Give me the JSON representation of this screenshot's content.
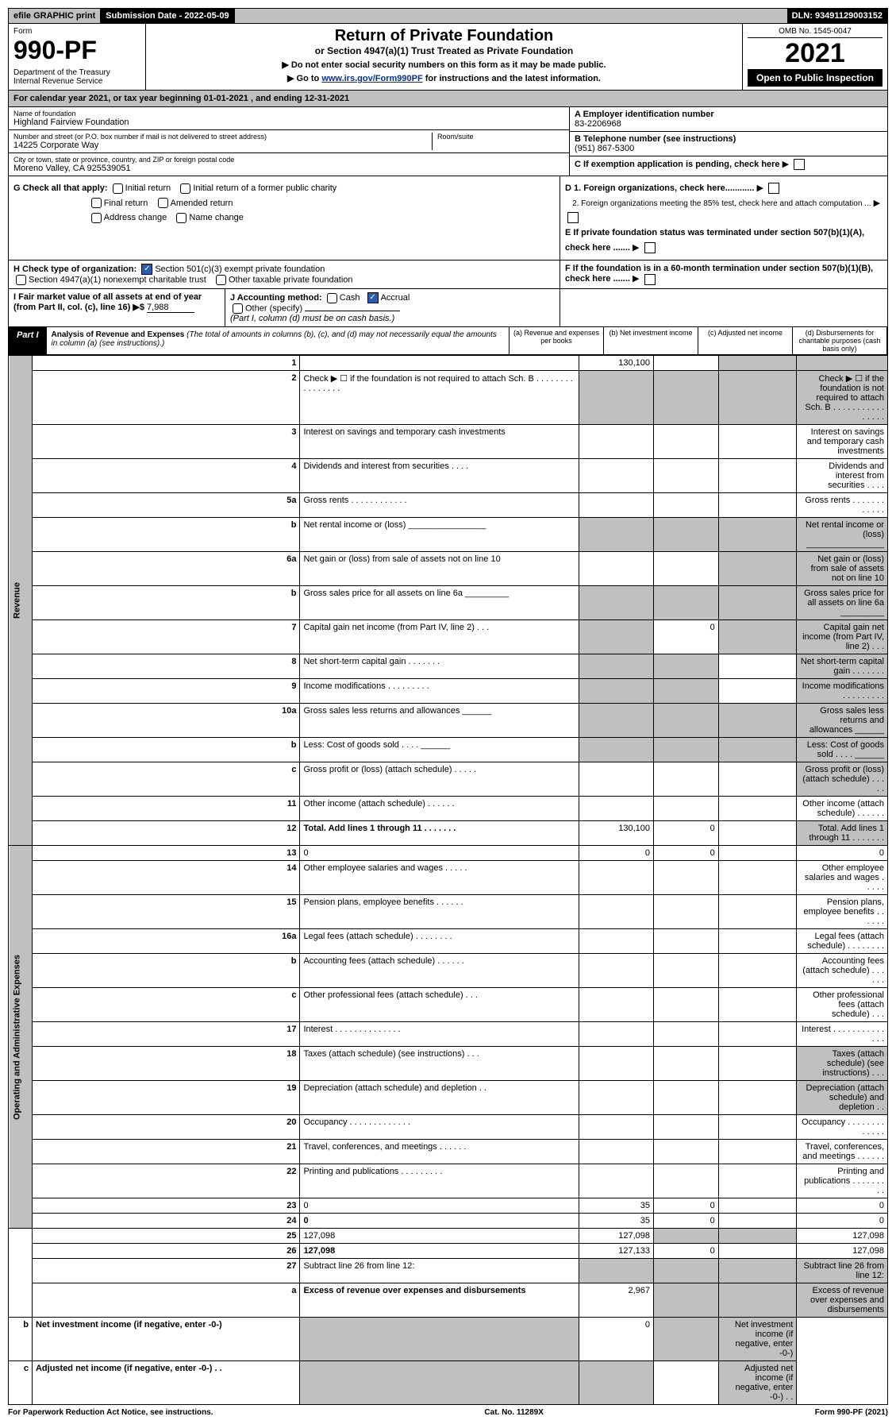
{
  "topbar": {
    "efile": "efile GRAPHIC print",
    "sub_label": "Submission Date - 2022-05-09",
    "dln": "DLN: 93491129003152"
  },
  "header": {
    "form_word": "Form",
    "form_num": "990-PF",
    "dept": "Department of the Treasury\nInternal Revenue Service",
    "title": "Return of Private Foundation",
    "subtitle": "or Section 4947(a)(1) Trust Treated as Private Foundation",
    "instr1": "▶ Do not enter social security numbers on this form as it may be made public.",
    "instr2_pre": "▶ Go to ",
    "instr2_link": "www.irs.gov/Form990PF",
    "instr2_post": " for instructions and the latest information.",
    "omb": "OMB No. 1545-0047",
    "year": "2021",
    "open_pub": "Open to Public Inspection"
  },
  "cal_year": "For calendar year 2021, or tax year beginning 01-01-2021                        , and ending 12-31-2021",
  "entity": {
    "name_lbl": "Name of foundation",
    "name": "Highland Fairview Foundation",
    "addr_lbl": "Number and street (or P.O. box number if mail is not delivered to street address)",
    "addr": "14225 Corporate Way",
    "room_lbl": "Room/suite",
    "city_lbl": "City or town, state or province, country, and ZIP or foreign postal code",
    "city": "Moreno Valley, CA  925539051",
    "a_lbl": "A Employer identification number",
    "a_val": "83-2206968",
    "b_lbl": "B Telephone number (see instructions)",
    "b_val": "(951) 867-5300",
    "c_lbl": "C If exemption application is pending, check here"
  },
  "g": {
    "label": "G Check all that apply:",
    "opts": [
      "Initial return",
      "Initial return of a former public charity",
      "Final return",
      "Amended return",
      "Address change",
      "Name change"
    ]
  },
  "d": {
    "d1": "D 1. Foreign organizations, check here............",
    "d2": "2. Foreign organizations meeting the 85% test, check here and attach computation ..."
  },
  "e": "E  If private foundation status was terminated under section 507(b)(1)(A), check here .......",
  "h": {
    "label": "H Check type of organization:",
    "opt1": "Section 501(c)(3) exempt private foundation",
    "opt2": "Section 4947(a)(1) nonexempt charitable trust",
    "opt3": "Other taxable private foundation"
  },
  "i": {
    "label": "I Fair market value of all assets at end of year (from Part II, col. (c), line 16) ▶$",
    "val": "7,988"
  },
  "j": {
    "label": "J Accounting method:",
    "cash": "Cash",
    "accrual": "Accrual",
    "other": "Other (specify)",
    "note": "(Part I, column (d) must be on cash basis.)"
  },
  "f": "F  If the foundation is in a 60-month termination under section 507(b)(1)(B), check here .......",
  "part1": {
    "badge": "Part I",
    "title": "Analysis of Revenue and Expenses",
    "note": "(The total of amounts in columns (b), (c), and (d) may not necessarily equal the amounts in column (a) (see instructions).)",
    "col_a": "(a)   Revenue and expenses per books",
    "col_b": "(b)   Net investment income",
    "col_c": "(c)   Adjusted net income",
    "col_d": "(d)   Disbursements for charitable purposes (cash basis only)"
  },
  "sides": {
    "rev": "Revenue",
    "exp": "Operating and Administrative Expenses"
  },
  "rows": [
    {
      "n": "1",
      "d": "",
      "a": "130,100",
      "b": "",
      "c": "",
      "shade_cd": true
    },
    {
      "n": "2",
      "d": "Check ▶ ☐ if the foundation is not required to attach Sch. B  .  .  .  .  .  .  .  .  .  .  .  .  .  .  .  .",
      "allshade": true
    },
    {
      "n": "3",
      "d": "Interest on savings and temporary cash investments"
    },
    {
      "n": "4",
      "d": "Dividends and interest from securities   .   .   .   ."
    },
    {
      "n": "5a",
      "d": "Gross rents   .   .   .   .   .   .   .   .   .   .   .   ."
    },
    {
      "n": "b",
      "d": "Net rental income or (loss)  ________________",
      "allshade": true
    },
    {
      "n": "6a",
      "d": "Net gain or (loss) from sale of assets not on line 10",
      "shade_cd": true
    },
    {
      "n": "b",
      "d": "Gross sales price for all assets on line 6a _________",
      "allshade": true
    },
    {
      "n": "7",
      "d": "Capital gain net income (from Part IV, line 2)   .   .   .",
      "b": "0",
      "shade_a": true,
      "shade_cd": true
    },
    {
      "n": "8",
      "d": "Net short-term capital gain  .   .   .   .   .   .   .",
      "shade_ab": true,
      "shade_d": true
    },
    {
      "n": "9",
      "d": "Income modifications  .   .   .   .   .   .   .   .   .",
      "shade_ab": true,
      "shade_d": true
    },
    {
      "n": "10a",
      "d": "Gross sales less returns and allowances  ______",
      "allshade": true
    },
    {
      "n": "b",
      "d": "Less: Cost of goods sold   .   .   .   .  ______",
      "allshade": true
    },
    {
      "n": "c",
      "d": "Gross profit or (loss) (attach schedule)  .   .   .   .   .",
      "shade_d": true
    },
    {
      "n": "11",
      "d": "Other income (attach schedule)   .   .   .   .   .   ."
    },
    {
      "n": "12",
      "d": "Total. Add lines 1 through 11   .   .   .   .   .   .   .",
      "bold": true,
      "a": "130,100",
      "b": "0",
      "shade_d": true
    },
    {
      "n": "13",
      "d": "0",
      "a": "0",
      "b": "0"
    },
    {
      "n": "14",
      "d": "Other employee salaries and wages  .   .   .   .   ."
    },
    {
      "n": "15",
      "d": "Pension plans, employee benefits  .   .   .   .   .   ."
    },
    {
      "n": "16a",
      "d": "Legal fees (attach schedule)  .   .   .   .   .   .   .   ."
    },
    {
      "n": "b",
      "d": "Accounting fees (attach schedule)  .   .   .   .   .   ."
    },
    {
      "n": "c",
      "d": "Other professional fees (attach schedule)   .   .   ."
    },
    {
      "n": "17",
      "d": "Interest  .   .   .   .   .   .   .   .   .   .   .   .   .   ."
    },
    {
      "n": "18",
      "d": "Taxes (attach schedule) (see instructions)   .   .   .",
      "shade_d": true
    },
    {
      "n": "19",
      "d": "Depreciation (attach schedule) and depletion   .   .",
      "shade_d": true
    },
    {
      "n": "20",
      "d": "Occupancy  .   .   .   .   .   .   .   .   .   .   .   .   ."
    },
    {
      "n": "21",
      "d": "Travel, conferences, and meetings  .   .   .   .   .   ."
    },
    {
      "n": "22",
      "d": "Printing and publications  .   .   .   .   .   .   .   .   ."
    },
    {
      "n": "23",
      "d": "0",
      "a": "35",
      "b": "0"
    },
    {
      "n": "24",
      "d": "0",
      "bold": true,
      "a": "35",
      "b": "0"
    },
    {
      "n": "25",
      "d": "127,098",
      "a": "127,098",
      "shade_bc": true
    },
    {
      "n": "26",
      "d": "127,098",
      "bold": true,
      "a": "127,133",
      "b": "0"
    },
    {
      "n": "27",
      "d": "Subtract line 26 from line 12:",
      "allshade": true
    },
    {
      "n": "a",
      "d": "Excess of revenue over expenses and disbursements",
      "bold": true,
      "a": "2,967",
      "shade_bcd": true
    },
    {
      "n": "b",
      "d": "Net investment income (if negative, enter -0-)",
      "bold": true,
      "b": "0",
      "shade_a": true,
      "shade_cd": true
    },
    {
      "n": "c",
      "d": "Adjusted net income (if negative, enter -0-)  .   .",
      "bold": true,
      "shade_ab": true,
      "shade_d": true
    }
  ],
  "footer": {
    "left": "For Paperwork Reduction Act Notice, see instructions.",
    "mid": "Cat. No. 11289X",
    "right": "Form 990-PF (2021)"
  }
}
